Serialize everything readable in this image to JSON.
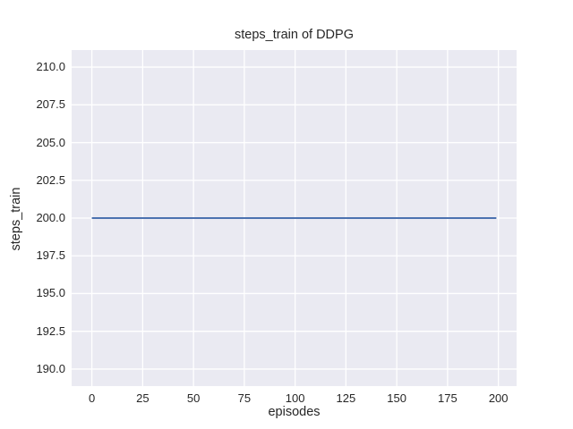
{
  "chart_data": {
    "type": "line",
    "title": "steps_train of DDPG",
    "xlabel": "episodes",
    "ylabel": "steps_train",
    "xlim": [
      -9.95,
      208.95
    ],
    "ylim": [
      188.87,
      211.13
    ],
    "xticks": [
      0,
      25,
      50,
      75,
      100,
      125,
      150,
      175,
      200
    ],
    "xtick_labels": [
      "0",
      "25",
      "50",
      "75",
      "100",
      "125",
      "150",
      "175",
      "200"
    ],
    "yticks": [
      190.0,
      192.5,
      195.0,
      197.5,
      200.0,
      202.5,
      205.0,
      207.5,
      210.0
    ],
    "ytick_labels": [
      "190.0",
      "192.5",
      "195.0",
      "197.5",
      "200.0",
      "202.5",
      "205.0",
      "207.5",
      "210.0"
    ],
    "grid": true,
    "legend": "none",
    "style": "seaborn-darkgrid",
    "plot_background_color": "#EAEAF2",
    "grid_color": "#FFFFFF",
    "figure_background_color": "#FFFFFF",
    "text_color": "#262626",
    "series": [
      {
        "name": "steps_train",
        "color": "#4C72B0",
        "description": "constant value 200 for every episode from 0 to 199",
        "points": [
          [
            0,
            200
          ],
          [
            199,
            200
          ]
        ]
      }
    ]
  }
}
